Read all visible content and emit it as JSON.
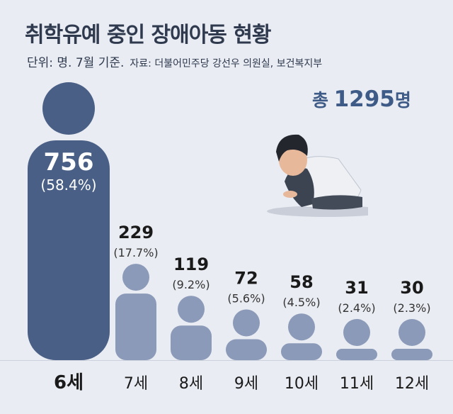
{
  "title": "취학유예 중인 장애아동 현황",
  "unit_label": "단위: 명. 7월 기준.",
  "source_label": "자료: 더불어민주당 강선우 의원실, 보건복지부",
  "total": {
    "prefix": "총",
    "value": "1295",
    "suffix": "명"
  },
  "colors": {
    "highlight": "#4a5f85",
    "normal": "#8b9ab8",
    "text": "#1a1a1a",
    "background": "#e9ecf2"
  },
  "chart_data": {
    "type": "bar",
    "categories": [
      "6세",
      "7세",
      "8세",
      "9세",
      "10세",
      "11세",
      "12세"
    ],
    "values": [
      756,
      229,
      119,
      72,
      58,
      31,
      30
    ],
    "percent_labels": [
      "(58.4%)",
      "(17.7%)",
      "(9.2%)",
      "(5.6%)",
      "(4.5%)",
      "(2.4%)",
      "(2.3%)"
    ],
    "highlight_index": 0,
    "title": "취학유예 중인 장애아동 현황"
  }
}
